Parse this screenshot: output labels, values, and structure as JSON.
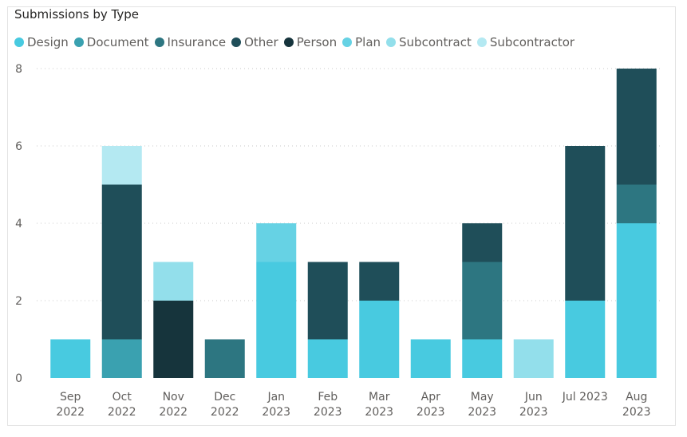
{
  "chart_data": {
    "type": "bar",
    "stacked": true,
    "title": "Submissions by Type",
    "xlabel": "",
    "ylabel": "",
    "ylim": [
      0,
      8
    ],
    "yticks": [
      0,
      2,
      4,
      6,
      8
    ],
    "grid": true,
    "legend_position": "top-left",
    "categories": [
      [
        "Sep",
        "2022"
      ],
      [
        "Oct",
        "2022"
      ],
      [
        "Nov",
        "2022"
      ],
      [
        "Dec",
        "2022"
      ],
      [
        "Jan",
        "2023"
      ],
      [
        "Feb",
        "2023"
      ],
      [
        "Mar",
        "2023"
      ],
      [
        "Apr",
        "2023"
      ],
      [
        "May",
        "2023"
      ],
      [
        "Jun",
        "2023"
      ],
      [
        "Jul 2023",
        ""
      ],
      [
        "Aug",
        "2023"
      ]
    ],
    "series": [
      {
        "name": "Design",
        "color": "#48cae0",
        "values": [
          1,
          0,
          0,
          0,
          3,
          1,
          2,
          1,
          1,
          0,
          2,
          4
        ]
      },
      {
        "name": "Document",
        "color": "#3aa1b0",
        "values": [
          0,
          1,
          0,
          0,
          0,
          0,
          0,
          0,
          0,
          0,
          0,
          0
        ]
      },
      {
        "name": "Insurance",
        "color": "#2d7681",
        "values": [
          0,
          0,
          0,
          1,
          0,
          0,
          0,
          0,
          2,
          0,
          0,
          1
        ]
      },
      {
        "name": "Other",
        "color": "#1f4e59",
        "values": [
          0,
          4,
          0,
          0,
          0,
          2,
          1,
          0,
          1,
          0,
          4,
          3
        ]
      },
      {
        "name": "Person",
        "color": "#16343c",
        "values": [
          0,
          0,
          2,
          0,
          0,
          0,
          0,
          0,
          0,
          0,
          0,
          0
        ]
      },
      {
        "name": "Plan",
        "color": "#66d2e4",
        "values": [
          0,
          0,
          0,
          0,
          1,
          0,
          0,
          0,
          0,
          0,
          0,
          0
        ]
      },
      {
        "name": "Subcontract",
        "color": "#93dfeb",
        "values": [
          0,
          0,
          1,
          0,
          0,
          0,
          0,
          0,
          0,
          1,
          0,
          0
        ]
      },
      {
        "name": "Subcontractor",
        "color": "#b4e9f2",
        "values": [
          0,
          1,
          0,
          0,
          0,
          0,
          0,
          0,
          0,
          0,
          0,
          0
        ]
      }
    ]
  }
}
